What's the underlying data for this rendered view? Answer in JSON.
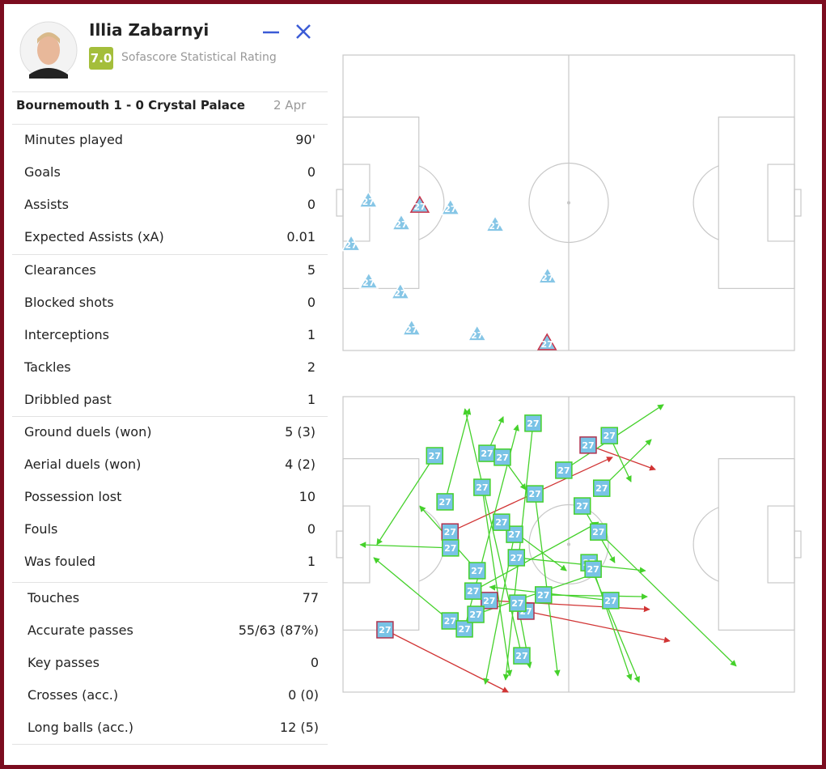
{
  "player": {
    "name": "Illia Zabarnyi",
    "rating": "7.0",
    "rating_label": "Sofascore Statistical Rating",
    "shirt_number": "27"
  },
  "match": {
    "title": "Bournemouth 1 - 0 Crystal Palace",
    "date": "2 Apr"
  },
  "stat_groups": [
    [
      {
        "label": "Minutes played",
        "value": "90'"
      },
      {
        "label": "Goals",
        "value": "0"
      },
      {
        "label": "Assists",
        "value": "0"
      },
      {
        "label": "Expected Assists (xA)",
        "value": "0.01"
      }
    ],
    [
      {
        "label": "Clearances",
        "value": "5"
      },
      {
        "label": "Blocked shots",
        "value": "0"
      },
      {
        "label": "Interceptions",
        "value": "1"
      },
      {
        "label": "Tackles",
        "value": "2"
      },
      {
        "label": "Dribbled past",
        "value": "1"
      }
    ],
    [
      {
        "label": "Ground duels (won)",
        "value": "5 (3)"
      },
      {
        "label": "Aerial duels (won)",
        "value": "4 (2)"
      },
      {
        "label": "Possession lost",
        "value": "10"
      },
      {
        "label": "Fouls",
        "value": "0"
      },
      {
        "label": "Was fouled",
        "value": "1"
      }
    ],
    [
      {
        "label": "Touches",
        "value": "77"
      },
      {
        "label": "Accurate passes",
        "value": "55/63 (87%)"
      },
      {
        "label": "Key passes",
        "value": "0"
      },
      {
        "label": "Crosses (acc.)",
        "value": "0 (0)"
      },
      {
        "label": "Long balls (acc.)",
        "value": "12 (5)"
      }
    ]
  ],
  "defensive_map": [
    {
      "x": 5.6,
      "y": 49.3,
      "success": true
    },
    {
      "x": 17,
      "y": 51,
      "success": false
    },
    {
      "x": 23.8,
      "y": 51.8,
      "success": true
    },
    {
      "x": 12.9,
      "y": 57,
      "success": true
    },
    {
      "x": 33.7,
      "y": 57.5,
      "success": true
    },
    {
      "x": 1.8,
      "y": 64,
      "success": true
    },
    {
      "x": 5.7,
      "y": 76.7,
      "success": true
    },
    {
      "x": 12.7,
      "y": 80.3,
      "success": true
    },
    {
      "x": 45.3,
      "y": 75,
      "success": true
    },
    {
      "x": 15.2,
      "y": 92.6,
      "success": true
    },
    {
      "x": 29.7,
      "y": 94.5,
      "success": true
    },
    {
      "x": 45.2,
      "y": 97.5,
      "success": false
    }
  ],
  "pass_map": [
    {
      "x1": 9.3,
      "y1": 78.9,
      "x2": 36.6,
      "y2": 100,
      "success": false
    },
    {
      "x1": 20.3,
      "y1": 20,
      "x2": 7.5,
      "y2": 50.1,
      "success": true
    },
    {
      "x1": 23.7,
      "y1": 45.8,
      "x2": 59.7,
      "y2": 20.5,
      "success": false
    },
    {
      "x1": 40.5,
      "y1": 72.6,
      "x2": 72.4,
      "y2": 82.7,
      "success": false
    },
    {
      "x1": 32.4,
      "y1": 69,
      "x2": 67.9,
      "y2": 72,
      "success": false
    },
    {
      "x1": 39.6,
      "y1": 87.7,
      "x2": 27,
      "y2": 4.1,
      "success": true
    },
    {
      "x1": 42.1,
      "y1": 9,
      "x2": 36,
      "y2": 95.9,
      "success": true
    },
    {
      "x1": 54.3,
      "y1": 16.4,
      "x2": 69.2,
      "y2": 24.7,
      "success": false
    },
    {
      "x1": 56.6,
      "y1": 45.8,
      "x2": 87.1,
      "y2": 91.2,
      "success": true
    },
    {
      "x1": 59.3,
      "y1": 69,
      "x2": 32.5,
      "y2": 64.4,
      "success": true
    },
    {
      "x1": 54.5,
      "y1": 56.2,
      "x2": 65.6,
      "y2": 96.7,
      "success": true
    },
    {
      "x1": 23.8,
      "y1": 51.2,
      "x2": 3.8,
      "y2": 50.1,
      "success": true
    },
    {
      "x1": 29.7,
      "y1": 58.9,
      "x2": 17,
      "y2": 37,
      "success": true
    },
    {
      "x1": 23.7,
      "y1": 75.9,
      "x2": 6.8,
      "y2": 54.5,
      "success": true
    },
    {
      "x1": 31.9,
      "y1": 19.2,
      "x2": 35.5,
      "y2": 6.8,
      "success": true
    },
    {
      "x1": 48.9,
      "y1": 24.9,
      "x2": 71,
      "y2": 2.7,
      "success": true
    },
    {
      "x1": 38,
      "y1": 46.6,
      "x2": 31.5,
      "y2": 97.3,
      "success": true
    },
    {
      "x1": 38.4,
      "y1": 54.5,
      "x2": 67,
      "y2": 58.9,
      "success": true
    },
    {
      "x1": 35.1,
      "y1": 42.5,
      "x2": 49.5,
      "y2": 58.9,
      "success": true
    },
    {
      "x1": 22.6,
      "y1": 35.6,
      "x2": 28,
      "y2": 4.1,
      "success": true
    },
    {
      "x1": 30.8,
      "y1": 30.7,
      "x2": 37,
      "y2": 94.5,
      "success": true
    },
    {
      "x1": 44.4,
      "y1": 67.1,
      "x2": 67.4,
      "y2": 67.7,
      "success": true
    },
    {
      "x1": 53,
      "y1": 37,
      "x2": 60.2,
      "y2": 56.2,
      "success": true
    },
    {
      "x1": 57.3,
      "y1": 31,
      "x2": 68.3,
      "y2": 14.5,
      "success": true
    },
    {
      "x1": 26.9,
      "y1": 78.6,
      "x2": 38.7,
      "y2": 9.6,
      "success": true
    },
    {
      "x1": 29.4,
      "y1": 73.7,
      "x2": 56.6,
      "y2": 59.5,
      "success": true
    },
    {
      "x1": 42.5,
      "y1": 32.9,
      "x2": 47.6,
      "y2": 94.5,
      "success": true
    },
    {
      "x1": 28.8,
      "y1": 65.8,
      "x2": 56.6,
      "y2": 42.5,
      "success": true
    },
    {
      "x1": 59,
      "y1": 13.2,
      "x2": 63.8,
      "y2": 28.8,
      "success": true
    },
    {
      "x1": 55.4,
      "y1": 58.4,
      "x2": 63.8,
      "y2": 95.9,
      "success": true
    },
    {
      "x1": 38.7,
      "y1": 69.9,
      "x2": 41.4,
      "y2": 91.8,
      "success": true
    },
    {
      "x1": 35.3,
      "y1": 20.5,
      "x2": 40.5,
      "y2": 31.5,
      "success": true
    }
  ]
}
